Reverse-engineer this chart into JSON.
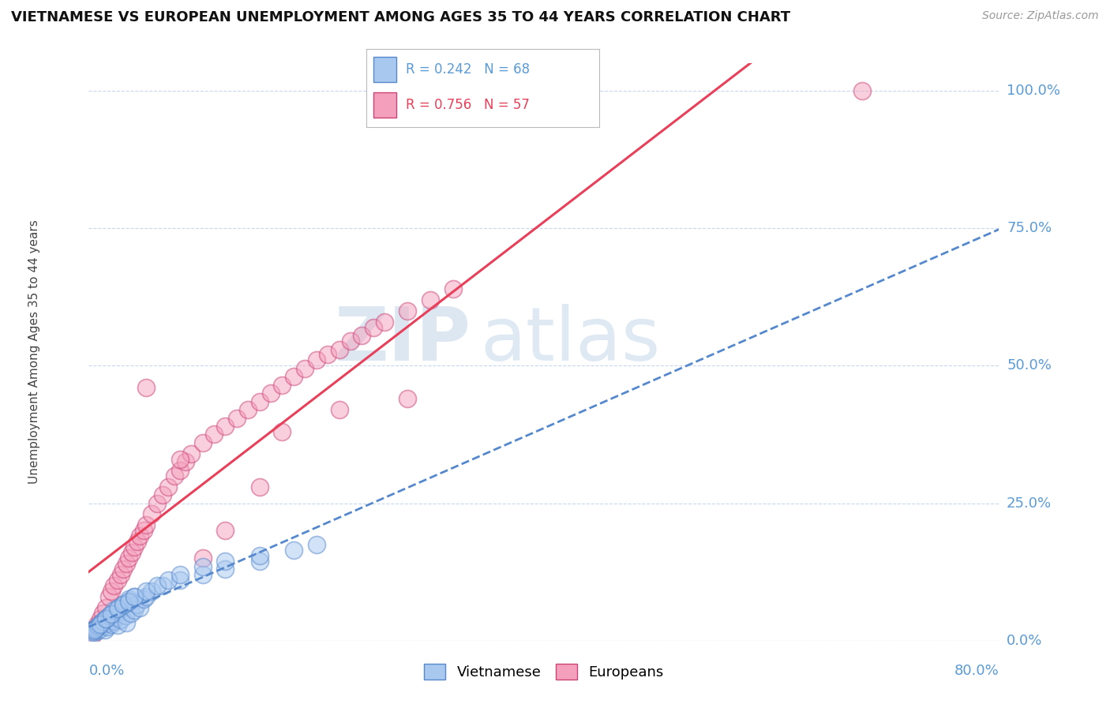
{
  "title": "VIETNAMESE VS EUROPEAN UNEMPLOYMENT AMONG AGES 35 TO 44 YEARS CORRELATION CHART",
  "source": "Source: ZipAtlas.com",
  "ylabel": "Unemployment Among Ages 35 to 44 years",
  "ytick_labels": [
    "0.0%",
    "25.0%",
    "50.0%",
    "75.0%",
    "100.0%"
  ],
  "ytick_values": [
    0.0,
    0.25,
    0.5,
    0.75,
    1.0
  ],
  "xlim": [
    0.0,
    0.8
  ],
  "ylim": [
    0.0,
    1.05
  ],
  "viet_color": "#a8c8f0",
  "viet_edge": "#5588cc",
  "euro_color": "#f4a0bc",
  "euro_edge": "#cc4477",
  "reg_viet_color": "#5588cc",
  "reg_euro_color": "#e8405a",
  "watermark_zip": "ZIP",
  "watermark_atlas": "atlas",
  "viet_R": "0.242",
  "viet_N": "68",
  "euro_R": "0.756",
  "euro_N": "57",
  "viet_x": [
    0.003,
    0.005,
    0.007,
    0.008,
    0.01,
    0.011,
    0.012,
    0.013,
    0.014,
    0.015,
    0.016,
    0.017,
    0.018,
    0.019,
    0.02,
    0.021,
    0.022,
    0.023,
    0.024,
    0.025,
    0.027,
    0.028,
    0.03,
    0.032,
    0.033,
    0.035,
    0.037,
    0.04,
    0.042,
    0.045,
    0.048,
    0.05,
    0.003,
    0.004,
    0.006,
    0.008,
    0.009,
    0.012,
    0.015,
    0.018,
    0.022,
    0.026,
    0.03,
    0.035,
    0.04,
    0.055,
    0.065,
    0.08,
    0.1,
    0.12,
    0.15,
    0.005,
    0.01,
    0.015,
    0.02,
    0.025,
    0.03,
    0.035,
    0.04,
    0.05,
    0.06,
    0.07,
    0.08,
    0.1,
    0.12,
    0.15,
    0.18,
    0.2
  ],
  "viet_y": [
    0.02,
    0.015,
    0.025,
    0.018,
    0.03,
    0.022,
    0.028,
    0.035,
    0.02,
    0.04,
    0.025,
    0.032,
    0.038,
    0.045,
    0.03,
    0.048,
    0.035,
    0.042,
    0.05,
    0.028,
    0.055,
    0.038,
    0.06,
    0.045,
    0.032,
    0.07,
    0.05,
    0.055,
    0.065,
    0.06,
    0.075,
    0.08,
    0.015,
    0.018,
    0.022,
    0.025,
    0.028,
    0.035,
    0.04,
    0.045,
    0.055,
    0.06,
    0.065,
    0.075,
    0.08,
    0.09,
    0.1,
    0.11,
    0.12,
    0.13,
    0.145,
    0.02,
    0.03,
    0.04,
    0.048,
    0.058,
    0.065,
    0.072,
    0.08,
    0.09,
    0.1,
    0.11,
    0.12,
    0.135,
    0.145,
    0.155,
    0.165,
    0.175
  ],
  "euro_x": [
    0.003,
    0.005,
    0.007,
    0.01,
    0.012,
    0.015,
    0.018,
    0.02,
    0.022,
    0.025,
    0.028,
    0.03,
    0.033,
    0.035,
    0.038,
    0.04,
    0.043,
    0.045,
    0.048,
    0.05,
    0.055,
    0.06,
    0.065,
    0.07,
    0.075,
    0.08,
    0.085,
    0.09,
    0.1,
    0.11,
    0.12,
    0.13,
    0.14,
    0.15,
    0.16,
    0.17,
    0.18,
    0.19,
    0.2,
    0.21,
    0.22,
    0.23,
    0.24,
    0.25,
    0.26,
    0.28,
    0.3,
    0.32,
    0.05,
    0.08,
    0.12,
    0.17,
    0.22,
    0.28,
    0.68,
    0.1,
    0.15
  ],
  "euro_y": [
    0.01,
    0.02,
    0.03,
    0.04,
    0.05,
    0.06,
    0.08,
    0.09,
    0.1,
    0.11,
    0.12,
    0.13,
    0.14,
    0.15,
    0.16,
    0.17,
    0.18,
    0.19,
    0.2,
    0.21,
    0.23,
    0.25,
    0.265,
    0.28,
    0.3,
    0.31,
    0.325,
    0.34,
    0.36,
    0.375,
    0.39,
    0.405,
    0.42,
    0.435,
    0.45,
    0.465,
    0.48,
    0.495,
    0.51,
    0.52,
    0.53,
    0.545,
    0.555,
    0.57,
    0.58,
    0.6,
    0.62,
    0.64,
    0.46,
    0.33,
    0.2,
    0.38,
    0.42,
    0.44,
    1.0,
    0.15,
    0.28
  ]
}
